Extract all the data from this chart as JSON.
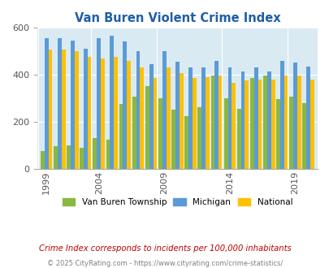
{
  "title": "Van Buren Violent Crime Index",
  "van_buren_color": "#8ab840",
  "michigan_color": "#5b9bd5",
  "national_color": "#ffc000",
  "plot_bg_color": "#daeaf3",
  "grid_color": "#ffffff",
  "ylim": [
    0,
    600
  ],
  "yticks": [
    0,
    200,
    400,
    600
  ],
  "xlabel_ticks": [
    1999,
    2004,
    2009,
    2014,
    2019
  ],
  "legend_labels": [
    "Van Buren Township",
    "Michigan",
    "National"
  ],
  "footnote1": "Crime Index corresponds to incidents per 100,000 inhabitants",
  "footnote2": "© 2025 CityRating.com - https://www.cityrating.com/crime-statistics/",
  "title_color": "#1f5fa6",
  "footnote1_color": "#c00000",
  "footnote2_color": "#808080",
  "years": [
    1999,
    2000,
    2001,
    2002,
    2004,
    2005,
    2006,
    2007,
    2008,
    2009,
    2010,
    2011,
    2012,
    2013,
    2014,
    2015,
    2016,
    2017,
    2018,
    2019,
    2020
  ],
  "van_buren": [
    75,
    95,
    100,
    90,
    130,
    125,
    275,
    305,
    350,
    300,
    250,
    225,
    260,
    395,
    300,
    255,
    385,
    395,
    295,
    305,
    280
  ],
  "michigan": [
    555,
    555,
    545,
    510,
    555,
    565,
    540,
    500,
    445,
    500,
    455,
    430,
    430,
    460,
    430,
    415,
    430,
    415,
    460,
    450,
    435
  ],
  "national": [
    505,
    505,
    500,
    475,
    470,
    475,
    460,
    430,
    385,
    430,
    405,
    385,
    390,
    395,
    365,
    375,
    380,
    380,
    395,
    395,
    380
  ]
}
